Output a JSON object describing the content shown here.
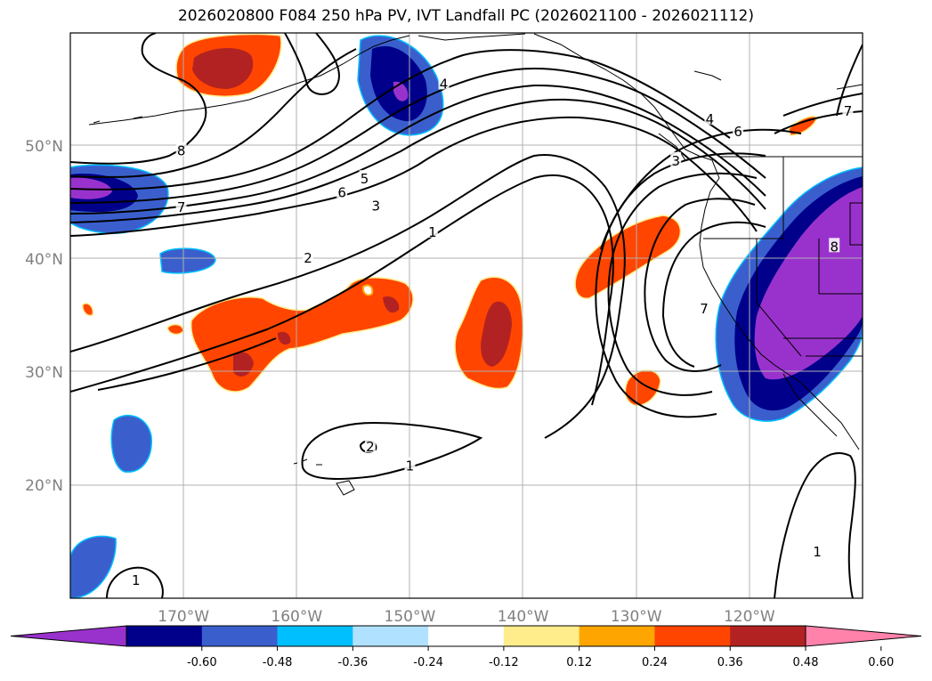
{
  "title": "2026020800 F084 250 hPa PV, IVT Landfall PC (2026021100 - 2026021112)",
  "map": {
    "projection": "lat-lon",
    "lon_range": [
      -180,
      -110
    ],
    "lat_range": [
      10,
      60
    ],
    "gridlines": true,
    "lat_ticks": [
      {
        "lat": 50,
        "label": "50°N"
      },
      {
        "lat": 40,
        "label": "40°N"
      },
      {
        "lat": 30,
        "label": "30°N"
      },
      {
        "lat": 20,
        "label": "20°N"
      }
    ],
    "lon_ticks": [
      {
        "lon": -170,
        "label": "170°W"
      },
      {
        "lon": -160,
        "label": "160°W"
      },
      {
        "lon": -150,
        "label": "150°W"
      },
      {
        "lon": -140,
        "label": "140°W"
      },
      {
        "lon": -130,
        "label": "130°W"
      },
      {
        "lon": -120,
        "label": "120°W"
      }
    ],
    "contour_labels": [
      {
        "text": "8",
        "lon": -170.2,
        "lat": 49.5
      },
      {
        "text": "7",
        "lon": -170.2,
        "lat": 44.5
      },
      {
        "text": "6",
        "lon": -156.0,
        "lat": 45.8
      },
      {
        "text": "5",
        "lon": -154.0,
        "lat": 47.0
      },
      {
        "text": "3",
        "lon": -153.0,
        "lat": 44.6
      },
      {
        "text": "1",
        "lon": -148.0,
        "lat": 42.3
      },
      {
        "text": "2",
        "lon": -159.0,
        "lat": 40.0
      },
      {
        "text": "4",
        "lon": -147.0,
        "lat": 55.4
      },
      {
        "text": "3",
        "lon": -126.5,
        "lat": 48.6
      },
      {
        "text": "4",
        "lon": -123.5,
        "lat": 52.3
      },
      {
        "text": "6",
        "lon": -121.0,
        "lat": 51.2
      },
      {
        "text": "7",
        "lon": -111.3,
        "lat": 53.0
      },
      {
        "text": "7",
        "lon": -124.0,
        "lat": 35.5
      },
      {
        "text": "8",
        "lon": -112.5,
        "lat": 41.0
      },
      {
        "text": "2",
        "lon": -153.5,
        "lat": 23.3
      },
      {
        "text": "1",
        "lon": -150.0,
        "lat": 21.6
      },
      {
        "text": "1",
        "lon": -174.2,
        "lat": 11.5
      },
      {
        "text": "1",
        "lon": -114.0,
        "lat": 14.0
      }
    ]
  },
  "colorbar": {
    "colors": [
      "#9932CC",
      "#00008B",
      "#3A5FCD",
      "#00BFFF",
      "#B0E2FF",
      "#FFFFFF",
      "#FFEC8B",
      "#FFA500",
      "#FF4500",
      "#B22222",
      "#FF82AB"
    ],
    "ticks": [
      "-0.60",
      "-0.48",
      "-0.36",
      "-0.24",
      "-0.12",
      "0.12",
      "0.24",
      "0.36",
      "0.48",
      "0.60"
    ],
    "extend": "both"
  },
  "shading": {
    "negative_colors": [
      "#3A5FCD",
      "#00008B",
      "#9932CC"
    ],
    "positive_colors": [
      "#FF4500",
      "#B22222"
    ]
  }
}
